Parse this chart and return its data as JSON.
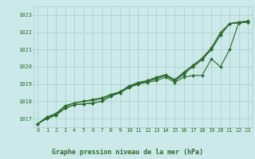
{
  "title": "Graphe pression niveau de la mer (hPa)",
  "xlabel_hours": [
    0,
    1,
    2,
    3,
    4,
    5,
    6,
    7,
    8,
    9,
    10,
    11,
    12,
    13,
    14,
    15,
    16,
    17,
    18,
    19,
    20,
    21,
    22,
    23
  ],
  "series": [
    [
      1016.7,
      1017.0,
      1017.2,
      1017.6,
      1017.8,
      1017.85,
      1017.9,
      1018.0,
      1018.3,
      1018.5,
      1018.8,
      1019.0,
      1019.1,
      1019.2,
      1019.4,
      1019.1,
      1019.4,
      1019.5,
      1019.5,
      1020.45,
      1020.0,
      1021.0,
      1022.55,
      1022.6
    ],
    [
      1016.7,
      1017.0,
      1017.2,
      1017.6,
      1017.8,
      1017.85,
      1017.9,
      1018.0,
      1018.3,
      1018.5,
      1018.8,
      1019.0,
      1019.2,
      1019.35,
      1019.5,
      1019.2,
      1019.55,
      1020.05,
      1020.5,
      1021.0,
      1021.85,
      1022.5,
      1022.55,
      1022.6
    ],
    [
      1016.7,
      1017.05,
      1017.25,
      1017.7,
      1017.9,
      1018.0,
      1018.05,
      1018.15,
      1018.35,
      1018.55,
      1018.85,
      1019.05,
      1019.15,
      1019.3,
      1019.5,
      1019.2,
      1019.65,
      1020.0,
      1020.4,
      1021.0,
      1021.85,
      1022.5,
      1022.55,
      1022.6
    ],
    [
      1016.7,
      1017.1,
      1017.3,
      1017.75,
      1017.9,
      1018.0,
      1018.1,
      1018.2,
      1018.4,
      1018.55,
      1018.9,
      1019.1,
      1019.2,
      1019.4,
      1019.55,
      1019.25,
      1019.7,
      1020.1,
      1020.5,
      1021.1,
      1022.0,
      1022.5,
      1022.6,
      1022.65
    ]
  ],
  "line_color": "#2d6a2d",
  "marker": "D",
  "markersize": 2.0,
  "linewidth": 0.8,
  "ylim": [
    1016.5,
    1023.5
  ],
  "yticks": [
    1017,
    1018,
    1019,
    1020,
    1021,
    1022,
    1023
  ],
  "xticks": [
    0,
    1,
    2,
    3,
    4,
    5,
    6,
    7,
    8,
    9,
    10,
    11,
    12,
    13,
    14,
    15,
    16,
    17,
    18,
    19,
    20,
    21,
    22,
    23
  ],
  "bg_color": "#cce9e9",
  "grid_color": "#aacccc",
  "text_color": "#2d6a2d",
  "title_color": "#2d6a2d",
  "tick_color": "#2d6a2d"
}
